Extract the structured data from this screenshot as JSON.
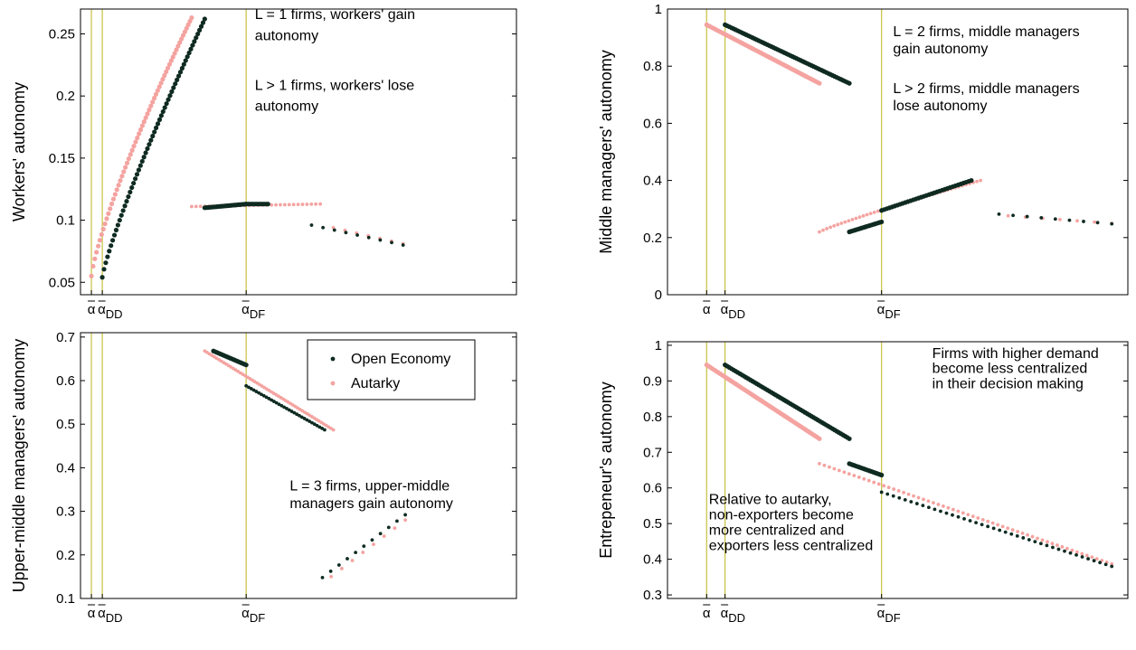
{
  "colors": {
    "open": "#0f2b21",
    "autarky": "#f4a3a0",
    "vline": "#c8c040",
    "axis": "#000000"
  },
  "legend": {
    "open": "Open Economy",
    "autarky": "Autarky"
  },
  "chart_data": [
    {
      "type": "scatter",
      "ylabel": "Workers' autonomy",
      "ylim": [
        0.04,
        0.27
      ],
      "yticks": [
        {
          "v": 0.05,
          "label": "0.05"
        },
        {
          "v": 0.1,
          "label": "0.1"
        },
        {
          "v": 0.15,
          "label": "0.15"
        },
        {
          "v": 0.2,
          "label": "0.2"
        },
        {
          "v": 0.25,
          "label": "0.25"
        }
      ],
      "xlim": [
        0,
        1
      ],
      "vlines": [
        0.025,
        0.05,
        0.38
      ],
      "markers": [
        {
          "x": 0.025,
          "base": "α",
          "sub": ""
        },
        {
          "x": 0.05,
          "base": "α",
          "sub": "DD"
        },
        {
          "x": 0.38,
          "base": "α",
          "sub": "DF"
        }
      ],
      "annotations": [
        {
          "x": 0.4,
          "y": 0.262,
          "text": "L = 1 firms, workers' gain"
        },
        {
          "x": 0.4,
          "y": 0.245,
          "text": "autonomy"
        },
        {
          "x": 0.4,
          "y": 0.205,
          "text": "L > 1 firms, workers' lose"
        },
        {
          "x": 0.4,
          "y": 0.188,
          "text": "autonomy"
        }
      ],
      "series": [
        {
          "name": "Open Economy",
          "segments": [
            {
              "x0": 0.05,
              "x1": 0.285,
              "y0": 0.054,
              "y1": 0.262,
              "curve": 0.85,
              "n": 60
            },
            {
              "x0": 0.285,
              "x1": 0.38,
              "y0": 0.11,
              "y1": 0.113,
              "curve": 1,
              "n": 25
            },
            {
              "x0": 0.38,
              "x1": 0.43,
              "y0": 0.113,
              "y1": 0.113,
              "curve": 1,
              "n": 12
            },
            {
              "x0": 0.53,
              "x1": 0.74,
              "y0": 0.096,
              "y1": 0.08,
              "curve": 1,
              "n": 9,
              "dots": true
            }
          ]
        },
        {
          "name": "Autarky",
          "segments": [
            {
              "x0": 0.025,
              "x1": 0.255,
              "y0": 0.055,
              "y1": 0.263,
              "curve": 0.8,
              "n": 60
            },
            {
              "x0": 0.255,
              "x1": 0.55,
              "y0": 0.111,
              "y1": 0.113,
              "curve": 1,
              "n": 30,
              "dots": true
            },
            {
              "x0": 0.58,
              "x1": 0.74,
              "y0": 0.094,
              "y1": 0.081,
              "curve": 1,
              "n": 7,
              "dots": true
            }
          ]
        }
      ]
    },
    {
      "type": "scatter",
      "ylabel": "Middle managers' autonomy",
      "ylim": [
        0,
        1
      ],
      "yticks": [
        {
          "v": 0,
          "label": "0"
        },
        {
          "v": 0.2,
          "label": "0.2"
        },
        {
          "v": 0.4,
          "label": "0.4"
        },
        {
          "v": 0.6,
          "label": "0.6"
        },
        {
          "v": 0.8,
          "label": "0.8"
        },
        {
          "v": 1,
          "label": "1"
        }
      ],
      "xlim": [
        0,
        1
      ],
      "vlines": [
        0.085,
        0.125,
        0.465
      ],
      "markers": [
        {
          "x": 0.085,
          "base": "α",
          "sub": ""
        },
        {
          "x": 0.125,
          "base": "α",
          "sub": "DD"
        },
        {
          "x": 0.465,
          "base": "α",
          "sub": "DF"
        }
      ],
      "annotations": [
        {
          "x": 0.49,
          "y": 0.905,
          "text": "L = 2 firms, middle managers"
        },
        {
          "x": 0.49,
          "y": 0.845,
          "text": "gain autonomy"
        },
        {
          "x": 0.49,
          "y": 0.705,
          "text": "L > 2 firms, middle managers"
        },
        {
          "x": 0.49,
          "y": 0.645,
          "text": "lose autonomy"
        }
      ],
      "series": [
        {
          "name": "Open Economy",
          "segments": [
            {
              "x0": 0.125,
              "x1": 0.395,
              "y0": 0.945,
              "y1": 0.74,
              "curve": 1,
              "n": 60
            },
            {
              "x0": 0.395,
              "x1": 0.465,
              "y0": 0.22,
              "y1": 0.255,
              "curve": 1,
              "n": 20
            },
            {
              "x0": 0.465,
              "x1": 0.66,
              "y0": 0.295,
              "y1": 0.4,
              "curve": 1,
              "n": 35
            },
            {
              "x0": 0.72,
              "x1": 0.965,
              "y0": 0.282,
              "y1": 0.248,
              "curve": 1,
              "n": 9,
              "dots": true
            }
          ]
        },
        {
          "name": "Autarky",
          "segments": [
            {
              "x0": 0.085,
              "x1": 0.33,
              "y0": 0.945,
              "y1": 0.74,
              "curve": 1,
              "n": 60
            },
            {
              "x0": 0.33,
              "x1": 0.68,
              "y0": 0.22,
              "y1": 0.4,
              "curve": 0.9,
              "n": 45,
              "dots": true
            },
            {
              "x0": 0.74,
              "x1": 0.965,
              "y0": 0.276,
              "y1": 0.25,
              "curve": 1,
              "n": 7,
              "dots": true
            }
          ]
        }
      ]
    },
    {
      "type": "scatter",
      "ylabel": "Upper-middle managers' autonomy",
      "ylim": [
        0.1,
        0.71
      ],
      "yticks": [
        {
          "v": 0.1,
          "label": "0.1"
        },
        {
          "v": 0.2,
          "label": "0.2"
        },
        {
          "v": 0.3,
          "label": "0.3"
        },
        {
          "v": 0.4,
          "label": "0.4"
        },
        {
          "v": 0.5,
          "label": "0.5"
        },
        {
          "v": 0.6,
          "label": "0.6"
        },
        {
          "v": 0.7,
          "label": "0.7"
        }
      ],
      "xlim": [
        0,
        1
      ],
      "vlines": [
        0.025,
        0.05,
        0.38
      ],
      "markers": [
        {
          "x": 0.025,
          "base": "α",
          "sub": ""
        },
        {
          "x": 0.05,
          "base": "α",
          "sub": "DD"
        },
        {
          "x": 0.38,
          "base": "α",
          "sub": "DF"
        }
      ],
      "annotations": [
        {
          "x": 0.48,
          "y": 0.348,
          "text": "L = 3 firms, upper-middle"
        },
        {
          "x": 0.48,
          "y": 0.308,
          "text": "managers gain autonomy"
        }
      ],
      "series": [
        {
          "name": "Open Economy",
          "segments": [
            {
              "x0": 0.305,
              "x1": 0.38,
              "y0": 0.668,
              "y1": 0.636,
              "curve": 1,
              "n": 20
            },
            {
              "x0": 0.38,
              "x1": 0.56,
              "y0": 0.588,
              "y1": 0.487,
              "curve": 1,
              "n": 32,
              "dots": true
            },
            {
              "x0": 0.555,
              "x1": 0.745,
              "y0": 0.148,
              "y1": 0.292,
              "curve": 1,
              "n": 11,
              "dots": true
            }
          ]
        },
        {
          "name": "Autarky",
          "segments": [
            {
              "x0": 0.285,
              "x1": 0.58,
              "y0": 0.668,
              "y1": 0.487,
              "curve": 1,
              "n": 55,
              "dots": true
            },
            {
              "x0": 0.575,
              "x1": 0.745,
              "y0": 0.15,
              "y1": 0.28,
              "curve": 1,
              "n": 8,
              "dots": true
            }
          ]
        }
      ]
    },
    {
      "type": "scatter",
      "ylabel": "Entrepeneur's autonomy",
      "ylim": [
        0.29,
        1.01
      ],
      "yticks": [
        {
          "v": 0.3,
          "label": "0.3"
        },
        {
          "v": 0.4,
          "label": "0.4"
        },
        {
          "v": 0.5,
          "label": "0.5"
        },
        {
          "v": 0.6,
          "label": "0.6"
        },
        {
          "v": 0.7,
          "label": "0.7"
        },
        {
          "v": 0.8,
          "label": "0.8"
        },
        {
          "v": 0.9,
          "label": "0.9"
        },
        {
          "v": 1,
          "label": "1"
        }
      ],
      "xlim": [
        0,
        1
      ],
      "vlines": [
        0.085,
        0.125,
        0.465
      ],
      "markers": [
        {
          "x": 0.085,
          "base": "α",
          "sub": ""
        },
        {
          "x": 0.125,
          "base": "α",
          "sub": "DD"
        },
        {
          "x": 0.465,
          "base": "α",
          "sub": "DF"
        }
      ],
      "annotations": [
        {
          "x": 0.575,
          "y": 0.965,
          "text": "Firms with higher demand"
        },
        {
          "x": 0.575,
          "y": 0.922,
          "text": "become less centralized"
        },
        {
          "x": 0.575,
          "y": 0.879,
          "text": "in their decision making"
        },
        {
          "x": 0.09,
          "y": 0.555,
          "text": "Relative to autarky,"
        },
        {
          "x": 0.09,
          "y": 0.512,
          "text": "non-exporters become"
        },
        {
          "x": 0.09,
          "y": 0.469,
          "text": "more centralized and"
        },
        {
          "x": 0.09,
          "y": 0.426,
          "text": "exporters less centralized"
        }
      ],
      "series": [
        {
          "name": "Open Economy",
          "segments": [
            {
              "x0": 0.125,
              "x1": 0.395,
              "y0": 0.945,
              "y1": 0.738,
              "curve": 1,
              "n": 60
            },
            {
              "x0": 0.395,
              "x1": 0.465,
              "y0": 0.668,
              "y1": 0.636,
              "curve": 1,
              "n": 20
            },
            {
              "x0": 0.465,
              "x1": 0.965,
              "y0": 0.588,
              "y1": 0.38,
              "curve": 1,
              "n": 40,
              "dots": true
            }
          ]
        },
        {
          "name": "Autarky",
          "segments": [
            {
              "x0": 0.085,
              "x1": 0.33,
              "y0": 0.945,
              "y1": 0.738,
              "curve": 1,
              "n": 60
            },
            {
              "x0": 0.33,
              "x1": 0.965,
              "y0": 0.668,
              "y1": 0.387,
              "curve": 1,
              "n": 60,
              "dots": true
            }
          ]
        }
      ]
    }
  ]
}
